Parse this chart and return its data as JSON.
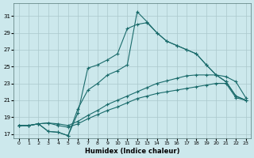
{
  "background_color": "#cce8ec",
  "grid_color": "#aac8cc",
  "line_color": "#1a6b6b",
  "xlabel": "Humidex (Indice chaleur)",
  "xlim": [
    -0.5,
    23.5
  ],
  "ylim": [
    16.5,
    32.5
  ],
  "xticks": [
    0,
    1,
    2,
    3,
    4,
    5,
    6,
    7,
    8,
    9,
    10,
    11,
    12,
    13,
    14,
    15,
    16,
    17,
    18,
    19,
    20,
    21,
    22,
    23
  ],
  "yticks": [
    17,
    19,
    21,
    23,
    25,
    27,
    29,
    31
  ],
  "line1_x": [
    0,
    1,
    2,
    3,
    4,
    5,
    6,
    7,
    8,
    9,
    10,
    11,
    12,
    13,
    14,
    15,
    16,
    17,
    18,
    19,
    20,
    21,
    22,
    23
  ],
  "line1_y": [
    18.0,
    18.0,
    18.2,
    17.3,
    17.2,
    16.8,
    20.0,
    22.2,
    23.0,
    24.0,
    24.5,
    25.2,
    31.5,
    30.3,
    29.0,
    28.0,
    27.5,
    27.0,
    26.5,
    25.2,
    24.0,
    23.2,
    21.5,
    21.0
  ],
  "line2_x": [
    0,
    1,
    2,
    3,
    4,
    5,
    6,
    7,
    8,
    9,
    10,
    11,
    12,
    13,
    14,
    15,
    16,
    17,
    18,
    19,
    20,
    21,
    22,
    23
  ],
  "line2_y": [
    18.0,
    18.0,
    18.2,
    17.3,
    17.2,
    16.8,
    19.5,
    24.8,
    25.2,
    25.8,
    26.5,
    29.5,
    30.0,
    30.2,
    29.0,
    28.0,
    27.5,
    27.0,
    26.5,
    25.2,
    24.0,
    23.2,
    21.5,
    21.0
  ],
  "line3_x": [
    0,
    1,
    2,
    3,
    4,
    5,
    6,
    7,
    8,
    9,
    10,
    11,
    12,
    13,
    14,
    15,
    16,
    17,
    18,
    19,
    20,
    21,
    22,
    23
  ],
  "line3_y": [
    18.0,
    18.0,
    18.2,
    18.3,
    18.2,
    18.0,
    18.5,
    19.2,
    19.8,
    20.5,
    21.0,
    21.5,
    22.0,
    22.5,
    23.0,
    23.3,
    23.6,
    23.9,
    24.0,
    24.0,
    24.0,
    23.8,
    23.2,
    21.3
  ],
  "line4_x": [
    0,
    1,
    2,
    3,
    4,
    5,
    6,
    7,
    8,
    9,
    10,
    11,
    12,
    13,
    14,
    15,
    16,
    17,
    18,
    19,
    20,
    21,
    22,
    23
  ],
  "line4_y": [
    18.0,
    18.0,
    18.2,
    18.3,
    18.0,
    17.8,
    18.2,
    18.8,
    19.3,
    19.8,
    20.2,
    20.7,
    21.2,
    21.5,
    21.8,
    22.0,
    22.2,
    22.4,
    22.6,
    22.8,
    23.0,
    23.0,
    21.3,
    21.0
  ]
}
